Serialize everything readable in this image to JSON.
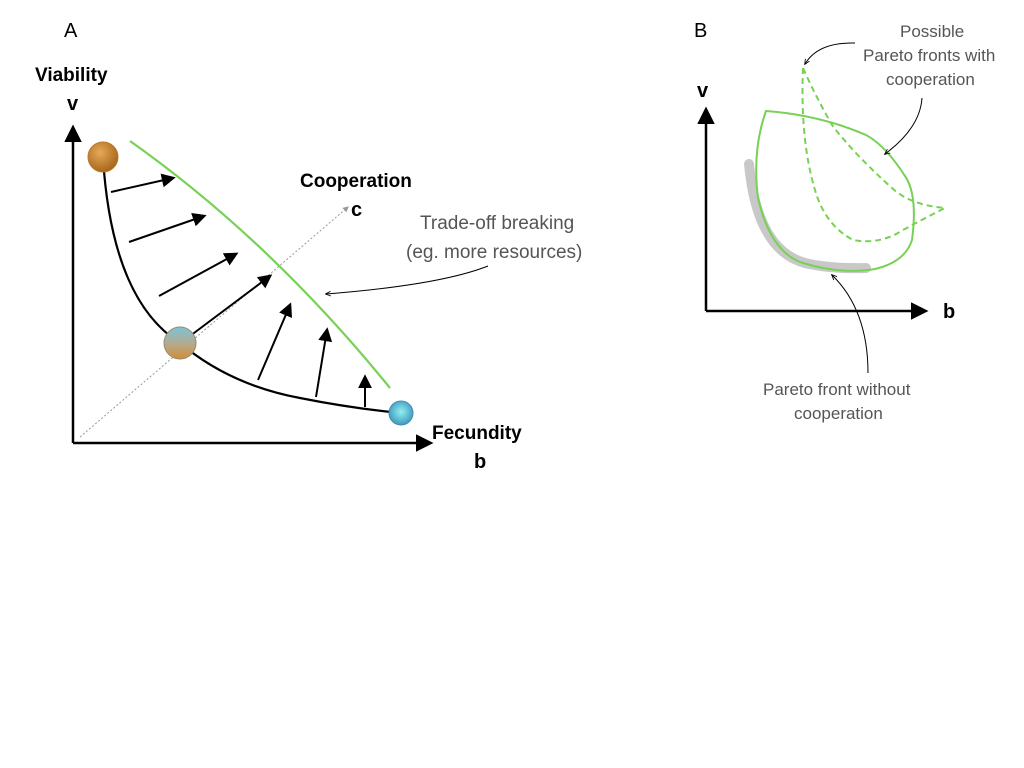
{
  "panel_a": {
    "label": "A",
    "y_axis_title": "Viability",
    "y_axis_var": "v",
    "x_axis_title": "Fecundity",
    "x_axis_var": "b",
    "diag_axis_title": "Cooperation",
    "diag_axis_var": "c",
    "annotation_line1": "Trade-off breaking",
    "annotation_line2": "(eg. more resources)",
    "colors": {
      "front": "#77d155",
      "sphere_top": "#c98a2e",
      "sphere_mid": "#d7a456",
      "sphere_bottom": "#55b8c9"
    }
  },
  "panel_b": {
    "label": "B",
    "y_axis_var": "v",
    "x_axis_var": "b",
    "top_annotation_line1": "Possible",
    "top_annotation_line2": "Pareto fronts with",
    "top_annotation_line3": "cooperation",
    "bottom_annotation_line1": "Pareto front without",
    "bottom_annotation_line2": "cooperation",
    "colors": {
      "front_coop": "#77d155",
      "front_no_coop": "#c8c8c8"
    }
  }
}
